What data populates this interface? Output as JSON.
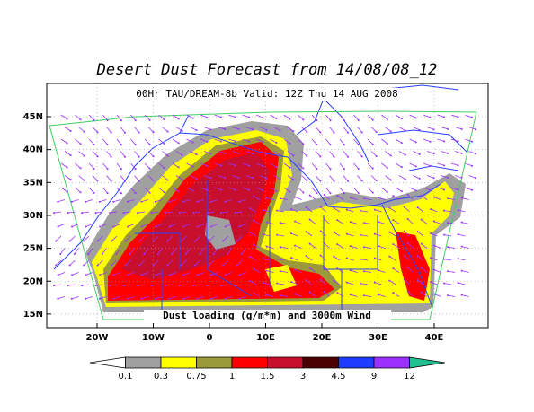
{
  "title": "Desert Dust Forecast from 14/08/08_12",
  "subtitle": "00Hr TAU/DREAM-8b Valid: 12Z Thu 14 AUG 2008",
  "caption": "Dust loading (g/m*m) and 3000m Wind",
  "map": {
    "lat_ticks": [
      {
        "value": 45,
        "label": "45N"
      },
      {
        "value": 40,
        "label": "40N"
      },
      {
        "value": 35,
        "label": "35N"
      },
      {
        "value": 30,
        "label": "30N"
      },
      {
        "value": 25,
        "label": "25N"
      },
      {
        "value": 20,
        "label": "20N"
      },
      {
        "value": 15,
        "label": "15N"
      }
    ],
    "lon_ticks": [
      {
        "value": -20,
        "label": "20W"
      },
      {
        "value": -10,
        "label": "10W"
      },
      0,
      {
        "value": 10,
        "label": "10E"
      },
      {
        "value": 20,
        "label": "20E"
      },
      {
        "value": 30,
        "label": "30E"
      },
      {
        "value": 40,
        "label": "40E"
      }
    ]
  },
  "colorbar": {
    "levels": [
      0.1,
      0.3,
      0.75,
      1,
      1.5,
      3,
      4.5,
      9,
      12
    ],
    "colors": [
      "#ffffff",
      "#a0a0a0",
      "#ffff00",
      "#9a9a3a",
      "#ff0000",
      "#c8102e",
      "#4a0000",
      "#1e3cff",
      "#9b30ff",
      "#20c090"
    ]
  }
}
